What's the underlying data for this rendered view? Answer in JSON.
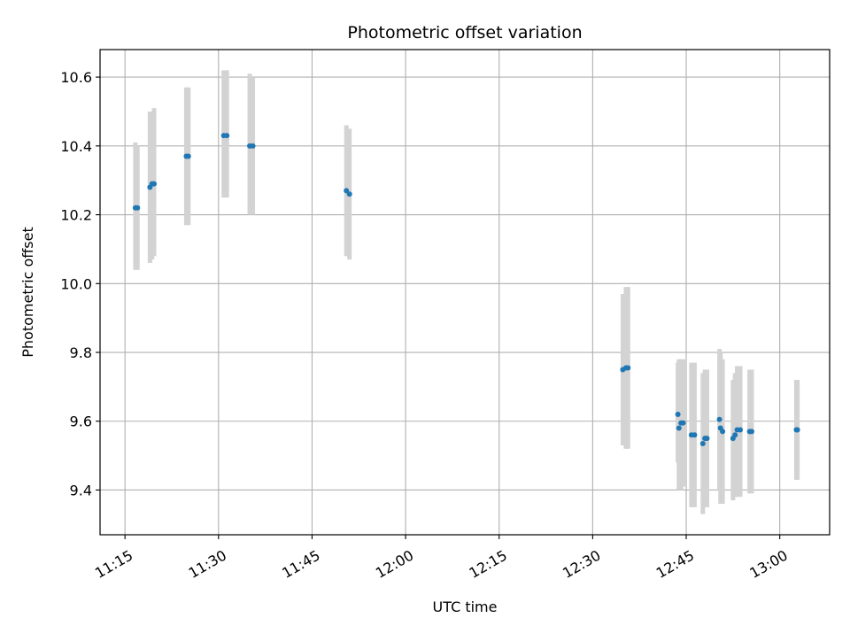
{
  "chart_data": {
    "type": "scatter",
    "title": "Photometric offset variation",
    "xlabel": "UTC time",
    "ylabel": "Photometric offset",
    "grid": true,
    "x_axis": {
      "kind": "time",
      "range": [
        "11:11",
        "13:08"
      ],
      "tick_labels": [
        "11:15",
        "11:30",
        "11:45",
        "12:00",
        "12:15",
        "12:30",
        "12:45",
        "13:00"
      ]
    },
    "y_axis": {
      "range": [
        9.27,
        10.68
      ],
      "tick_labels": [
        "9.4",
        "9.6",
        "9.8",
        "10.0",
        "10.2",
        "10.4",
        "10.6"
      ]
    },
    "colors": {
      "points": "#1f77b4",
      "error_bars": "#d3d3d3",
      "grid": "#b0b0b0"
    },
    "series": [
      {
        "points": [
          {
            "t": "11:16:40",
            "y": 10.22,
            "ylo": 10.04,
            "yhi": 10.41
          },
          {
            "t": "11:17:00",
            "y": 10.22,
            "ylo": 10.04,
            "yhi": 10.4
          },
          {
            "t": "11:19:00",
            "y": 10.28,
            "ylo": 10.06,
            "yhi": 10.5
          },
          {
            "t": "11:19:20",
            "y": 10.29,
            "ylo": 10.07,
            "yhi": 10.5
          },
          {
            "t": "11:19:40",
            "y": 10.29,
            "ylo": 10.08,
            "yhi": 10.51
          },
          {
            "t": "11:24:50",
            "y": 10.37,
            "ylo": 10.17,
            "yhi": 10.57
          },
          {
            "t": "11:25:10",
            "y": 10.37,
            "ylo": 10.17,
            "yhi": 10.57
          },
          {
            "t": "11:30:50",
            "y": 10.43,
            "ylo": 10.25,
            "yhi": 10.62
          },
          {
            "t": "11:31:20",
            "y": 10.43,
            "ylo": 10.25,
            "yhi": 10.62
          },
          {
            "t": "11:35:00",
            "y": 10.4,
            "ylo": 10.2,
            "yhi": 10.61
          },
          {
            "t": "11:35:30",
            "y": 10.4,
            "ylo": 10.2,
            "yhi": 10.6
          },
          {
            "t": "11:50:30",
            "y": 10.27,
            "ylo": 10.08,
            "yhi": 10.46
          },
          {
            "t": "11:51:00",
            "y": 10.26,
            "ylo": 10.07,
            "yhi": 10.45
          },
          {
            "t": "12:34:50",
            "y": 9.75,
            "ylo": 9.53,
            "yhi": 9.97
          },
          {
            "t": "12:35:20",
            "y": 9.755,
            "ylo": 9.52,
            "yhi": 9.99
          },
          {
            "t": "12:35:40",
            "y": 9.755,
            "ylo": 9.52,
            "yhi": 9.99
          },
          {
            "t": "12:43:40",
            "y": 9.62,
            "ylo": 9.48,
            "yhi": 9.77
          },
          {
            "t": "12:43:50",
            "y": 9.58,
            "ylo": 9.4,
            "yhi": 9.78
          },
          {
            "t": "12:44:10",
            "y": 9.595,
            "ylo": 9.4,
            "yhi": 9.78
          },
          {
            "t": "12:44:30",
            "y": 9.595,
            "ylo": 9.41,
            "yhi": 9.78
          },
          {
            "t": "12:45:50",
            "y": 9.56,
            "ylo": 9.35,
            "yhi": 9.77
          },
          {
            "t": "12:46:20",
            "y": 9.56,
            "ylo": 9.35,
            "yhi": 9.77
          },
          {
            "t": "12:47:40",
            "y": 9.535,
            "ylo": 9.33,
            "yhi": 9.74
          },
          {
            "t": "12:48:00",
            "y": 9.55,
            "ylo": 9.35,
            "yhi": 9.75
          },
          {
            "t": "12:48:20",
            "y": 9.55,
            "ylo": 9.35,
            "yhi": 9.75
          },
          {
            "t": "12:50:20",
            "y": 9.605,
            "ylo": 9.4,
            "yhi": 9.81
          },
          {
            "t": "12:50:30",
            "y": 9.58,
            "ylo": 9.36,
            "yhi": 9.8
          },
          {
            "t": "12:50:50",
            "y": 9.57,
            "ylo": 9.36,
            "yhi": 9.78
          },
          {
            "t": "12:52:30",
            "y": 9.55,
            "ylo": 9.37,
            "yhi": 9.72
          },
          {
            "t": "12:52:50",
            "y": 9.56,
            "ylo": 9.38,
            "yhi": 9.74
          },
          {
            "t": "12:53:10",
            "y": 9.575,
            "ylo": 9.38,
            "yhi": 9.76
          },
          {
            "t": "12:53:40",
            "y": 9.575,
            "ylo": 9.38,
            "yhi": 9.76
          },
          {
            "t": "12:55:10",
            "y": 9.57,
            "ylo": 9.39,
            "yhi": 9.75
          },
          {
            "t": "12:55:30",
            "y": 9.57,
            "ylo": 9.39,
            "yhi": 9.75
          },
          {
            "t": "13:02:40",
            "y": 9.575,
            "ylo": 9.43,
            "yhi": 9.72
          },
          {
            "t": "13:02:50",
            "y": 9.575,
            "ylo": 9.43,
            "yhi": 9.72
          }
        ]
      }
    ]
  }
}
